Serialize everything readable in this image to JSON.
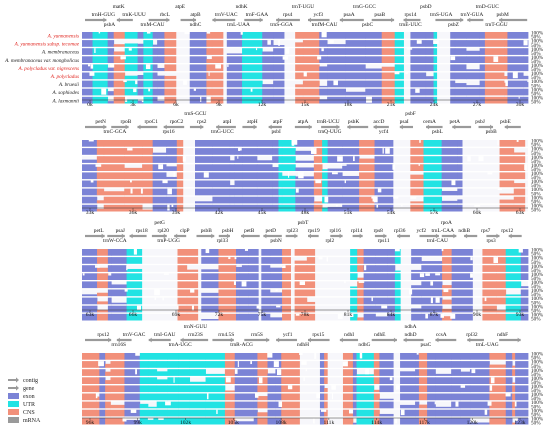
{
  "species": [
    {
      "name": "A. yunnanensis",
      "highlight": true
    },
    {
      "name": "A. yunnanensis subsp. tecomae",
      "highlight": true
    },
    {
      "name": "A. membranaceus",
      "highlight": false
    },
    {
      "name": "A. membranaceus var. mongholicus",
      "highlight": false
    },
    {
      "name": "A. polycladus var. nigrescens",
      "highlight": true
    },
    {
      "name": "A. polycladus",
      "highlight": true
    },
    {
      "name": "A. bruesii",
      "highlight": false
    },
    {
      "name": "A. sophiodes",
      "highlight": false
    },
    {
      "name": "A. laxmannii",
      "highlight": false
    }
  ],
  "identity_labels": [
    "100%",
    "50%"
  ],
  "panels": [
    {
      "id": "panel-1",
      "ticks": [
        "0k",
        "3k",
        "6k",
        "9k",
        "12k",
        "15k",
        "18k",
        "21k",
        "24k",
        "27k",
        "30k"
      ],
      "genes_top": [
        "matK",
        "atpE",
        "ndhK",
        "trnT-UGU",
        "trnG-GCC",
        "psbD",
        "trnD-GUC"
      ],
      "genes_mid": [
        "trnH-GUG",
        "trnK-UUU",
        "rbcL",
        "atpB",
        "trnV-UAC",
        "trnF-GAA",
        "rps4",
        "ycf3",
        "psaA",
        "psaB",
        "rps14",
        "trnS-UGA",
        "trnY-GUA",
        "psbM"
      ],
      "genes_low": [
        "psbA",
        "trnM-CAU",
        "ndhC",
        "trnL-UAA",
        "trnS-GGA",
        "trnfM-CAU",
        "psbC",
        "trnE-UUC",
        "psbZ",
        "trnT-GGU"
      ]
    },
    {
      "id": "panel-2",
      "ticks": [
        "33k",
        "36k",
        "39k",
        "42k",
        "45k",
        "48k",
        "51k",
        "54k",
        "57k",
        "60k",
        "63k"
      ],
      "genes_top": [
        "trnS-GCU",
        "psbF"
      ],
      "genes_mid": [
        "petN",
        "rpoB",
        "rpoC1",
        "rpoC2",
        "rps2",
        "atpI",
        "atpH",
        "atpF",
        "atpA",
        "trnR-UCU",
        "psbK",
        "accD",
        "psaI",
        "cemA",
        "petA",
        "psbJ",
        "psbE"
      ],
      "genes_low": [
        "trnC-GCA",
        "rps16",
        "trnG-UCC",
        "psbI",
        "trnQ-UUG",
        "ycf4",
        "psbL",
        "psbB"
      ]
    },
    {
      "id": "panel-3",
      "ticks": [
        "63k",
        "66k",
        "69k",
        "72k",
        "75k",
        "78k",
        "81k",
        "84k",
        "87k",
        "90k",
        "93k"
      ],
      "genes_top": [
        "petG",
        "psbT",
        "rpoA"
      ],
      "genes_mid": [
        "petL",
        "psaJ",
        "rps18",
        "rpl20",
        "clpP",
        "psbB",
        "psbH",
        "petB",
        "petD",
        "rpl23",
        "rps19",
        "rpl16",
        "rpl14",
        "rps8",
        "rpl36",
        "ycf2",
        "trnL-CAA",
        "ndhB",
        "rps7",
        "rps12"
      ],
      "genes_low": [
        "trnW-CCA",
        "trnP-UGG",
        "rpl33",
        "psbN",
        "rpl2",
        "rps11",
        "trnI-CAU",
        "rps3"
      ]
    },
    {
      "id": "panel-4",
      "ticks": [
        "96k",
        "99k",
        "102k",
        "105k",
        "108k",
        "111k",
        "114k",
        "117k",
        "120k",
        "123k"
      ],
      "genes_top": [
        "trnN-GUU",
        "ndhA"
      ],
      "genes_mid": [
        "rps12",
        "trnV-GAC",
        "trnI-GAU",
        "rrn23S",
        "rrn4.5S",
        "rrn5S",
        "ycf1",
        "rps15",
        "ndhI",
        "ndhE",
        "ndhD",
        "ccsA",
        "rpl32",
        "ndhF"
      ],
      "genes_low": [
        "rrn16S",
        "trnA-UGC",
        "trnR-ACG",
        "ndhH",
        "ndhG",
        "psaC",
        "trnL-UAG"
      ]
    }
  ],
  "legend": [
    {
      "label": "contig",
      "shape": "arrow",
      "color": "#9a9a9a"
    },
    {
      "label": "gene",
      "shape": "arrow",
      "color": "#9a9a9a"
    },
    {
      "label": "exon",
      "shape": "box",
      "color": "#7b83d6"
    },
    {
      "label": "UTR",
      "shape": "box",
      "color": "#22e3e3"
    },
    {
      "label": "CNS",
      "shape": "box",
      "color": "#f2907a"
    },
    {
      "label": "mRNA",
      "shape": "box",
      "color": "#9a9a9a"
    }
  ],
  "colors": {
    "exon": "#7b83d6",
    "utr": "#22e3e3",
    "cns": "#f2907a",
    "track_bg": "#ffffff",
    "trough": "#ffffff",
    "highlight_text": "#e0211b",
    "arrow": "#9a9a9a"
  }
}
